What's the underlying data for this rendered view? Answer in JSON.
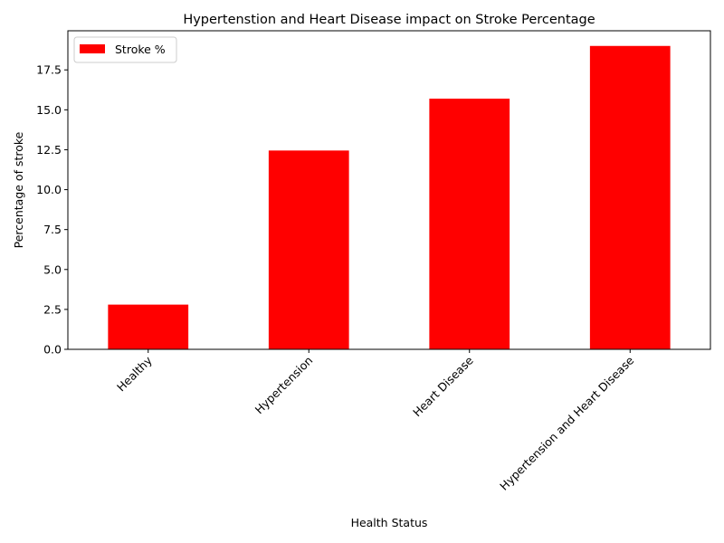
{
  "chart_data": {
    "type": "bar",
    "title": "Hypertenstion and Heart Disease impact on Stroke Percentage",
    "xlabel": "Health Status",
    "ylabel": "Percentage of stroke",
    "categories": [
      "Healthy",
      "Hypertension",
      "Heart Disease",
      "Hypertension and Heart Disease"
    ],
    "series": [
      {
        "name": "Stroke %",
        "values": [
          2.8,
          12.45,
          15.7,
          19.0
        ],
        "color": "#ff0000"
      }
    ],
    "ylim": [
      0,
      19.95
    ],
    "yticks": [
      0.0,
      2.5,
      5.0,
      7.5,
      10.0,
      12.5,
      15.0,
      17.5
    ],
    "ytick_labels": [
      "0.0",
      "2.5",
      "5.0",
      "7.5",
      "10.0",
      "12.5",
      "15.0",
      "17.5"
    ],
    "grid": false,
    "legend_placement": "top-left"
  }
}
